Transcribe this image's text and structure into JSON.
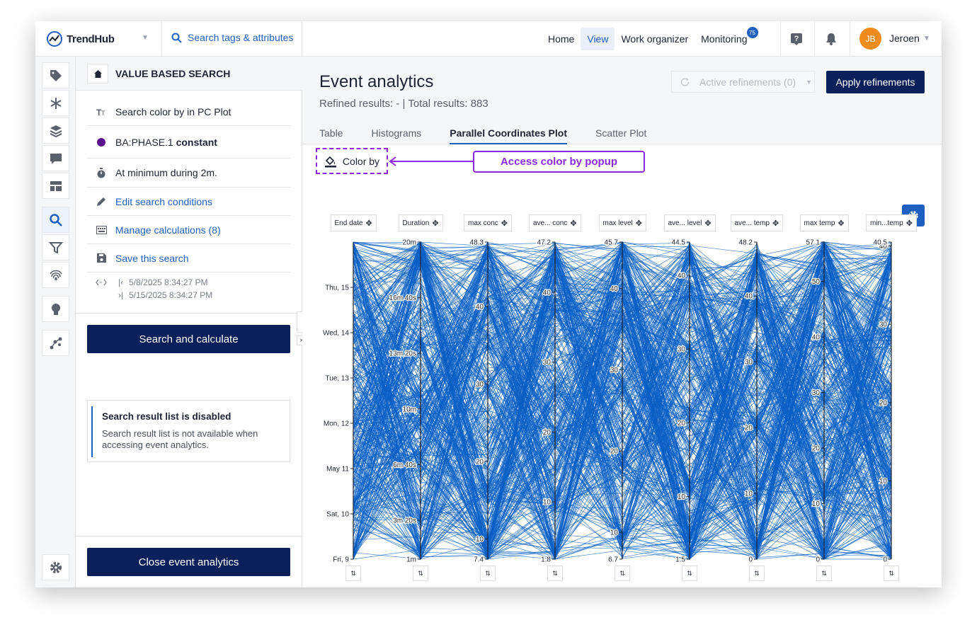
{
  "app": {
    "name": "TrendHub"
  },
  "search": {
    "label": "Search tags & attributes"
  },
  "nav": {
    "items": [
      {
        "label": "Home",
        "active": false
      },
      {
        "label": "View",
        "active": true
      },
      {
        "label": "Work organizer",
        "active": false
      },
      {
        "label": "Monitoring",
        "active": false,
        "badge": "75"
      }
    ]
  },
  "user": {
    "initials": "JB",
    "name": "Jeroen"
  },
  "sidebar": {
    "title": "VALUE BASED SEARCH",
    "conditions": [
      {
        "icon": "text-type-icon",
        "label": "Search color by in PC Plot"
      },
      {
        "icon": "purple-dot-icon",
        "tag": "BA:PHASE.1",
        "state": "constant"
      },
      {
        "icon": "stopwatch-icon",
        "label": "At minimum during 2m."
      },
      {
        "icon": "pencil-icon",
        "label": "Edit search conditions"
      },
      {
        "icon": "calculator-icon",
        "label": "Manage calculations (8)"
      },
      {
        "icon": "floppy-icon",
        "label": "Save this search"
      }
    ],
    "date_start": "5/8/2025 8:34:27 PM",
    "date_end": "5/15/2025 8:34:27 PM",
    "search_button": "Search and calculate",
    "notice_title": "Search result list is disabled",
    "notice_text": "Search result list is not available when accessing event analytics.",
    "close_button": "Close event analytics"
  },
  "main": {
    "title": "Event analytics",
    "results": "Refined results: - | Total results: 883",
    "refinements_label": "Active refinements (0)",
    "apply_label": "Apply refinements",
    "tabs": [
      "Table",
      "Histograms",
      "Parallel Coordinates Plot",
      "Scatter Plot"
    ],
    "active_tab": 2,
    "color_by_label": "Color by",
    "callout": "Access color by popup"
  },
  "colors": {
    "accent": "#1f5fbf",
    "navy": "#0b1f5a",
    "callout": "#8a2be2",
    "line": "#0a5fc4",
    "avatar": "#f08c1e"
  },
  "chart_data": {
    "type": "parallel-coordinates",
    "total_lines": 883,
    "axes": [
      {
        "name": "End date",
        "ticks": [
          {
            "label": "Fri, 9",
            "v": 0
          },
          {
            "label": "Sat, 10",
            "v": 1
          },
          {
            "label": "May 11",
            "v": 2
          },
          {
            "label": "Mon, 12",
            "v": 3
          },
          {
            "label": "Tue, 13",
            "v": 4
          },
          {
            "label": "Wed, 14",
            "v": 5
          },
          {
            "label": "Thu, 15",
            "v": 6
          }
        ],
        "range": [
          0,
          7
        ]
      },
      {
        "name": "Duration",
        "ticks": [
          {
            "label": "1m",
            "v": 60
          },
          {
            "label": "3m 20s",
            "v": 200
          },
          {
            "label": "6m 40s",
            "v": 400
          },
          {
            "label": "10m",
            "v": 600
          },
          {
            "label": "13m 20s",
            "v": 800
          },
          {
            "label": "16m 40s",
            "v": 1000
          },
          {
            "label": "20m",
            "v": 1200
          }
        ],
        "range": [
          60,
          1200
        ]
      },
      {
        "name": "max conc",
        "ticks": [
          {
            "label": "7.4",
            "v": 7.4
          },
          {
            "label": "10",
            "v": 10
          },
          {
            "label": "20",
            "v": 20
          },
          {
            "label": "30",
            "v": 30
          },
          {
            "label": "40",
            "v": 40
          },
          {
            "label": "48.3",
            "v": 48.3
          }
        ],
        "range": [
          7.4,
          48.3
        ]
      },
      {
        "name": "ave... conc",
        "ticks": [
          {
            "label": "1.8",
            "v": 1.8
          },
          {
            "label": "10",
            "v": 10
          },
          {
            "label": "20",
            "v": 20
          },
          {
            "label": "30",
            "v": 30
          },
          {
            "label": "40",
            "v": 40
          },
          {
            "label": "47.2",
            "v": 47.2
          }
        ],
        "range": [
          1.8,
          47.2
        ]
      },
      {
        "name": "max level",
        "ticks": [
          {
            "label": "6.7",
            "v": 6.7
          },
          {
            "label": "10",
            "v": 10
          },
          {
            "label": "20",
            "v": 20
          },
          {
            "label": "30",
            "v": 30
          },
          {
            "label": "40",
            "v": 40
          },
          {
            "label": "45.7",
            "v": 45.7
          }
        ],
        "range": [
          6.7,
          45.7
        ]
      },
      {
        "name": "ave... level",
        "ticks": [
          {
            "label": "1.5",
            "v": 1.5
          },
          {
            "label": "10",
            "v": 10
          },
          {
            "label": "20",
            "v": 20
          },
          {
            "label": "30",
            "v": 30
          },
          {
            "label": "40",
            "v": 40
          },
          {
            "label": "44.5",
            "v": 44.5
          }
        ],
        "range": [
          1.5,
          44.5
        ]
      },
      {
        "name": "ave... temp",
        "ticks": [
          {
            "label": "0",
            "v": 0
          },
          {
            "label": "10",
            "v": 10
          },
          {
            "label": "20",
            "v": 20
          },
          {
            "label": "30",
            "v": 30
          },
          {
            "label": "40",
            "v": 40
          },
          {
            "label": "48.2",
            "v": 48.2
          }
        ],
        "range": [
          0,
          48.2
        ]
      },
      {
        "name": "max temp",
        "ticks": [
          {
            "label": "0",
            "v": 0
          },
          {
            "label": "10",
            "v": 10
          },
          {
            "label": "20",
            "v": 20
          },
          {
            "label": "30",
            "v": 30
          },
          {
            "label": "40",
            "v": 40
          },
          {
            "label": "50",
            "v": 50
          },
          {
            "label": "57.1",
            "v": 57.1
          }
        ],
        "range": [
          0,
          57.1
        ]
      },
      {
        "name": "min...temp",
        "ticks": [
          {
            "label": "0",
            "v": 0
          },
          {
            "label": "10",
            "v": 10
          },
          {
            "label": "20",
            "v": 20
          },
          {
            "label": "30",
            "v": 30
          },
          {
            "label": "40",
            "v": 40
          },
          {
            "label": "40.5",
            "v": 40.5
          }
        ],
        "range": [
          0,
          40.5
        ]
      }
    ]
  }
}
